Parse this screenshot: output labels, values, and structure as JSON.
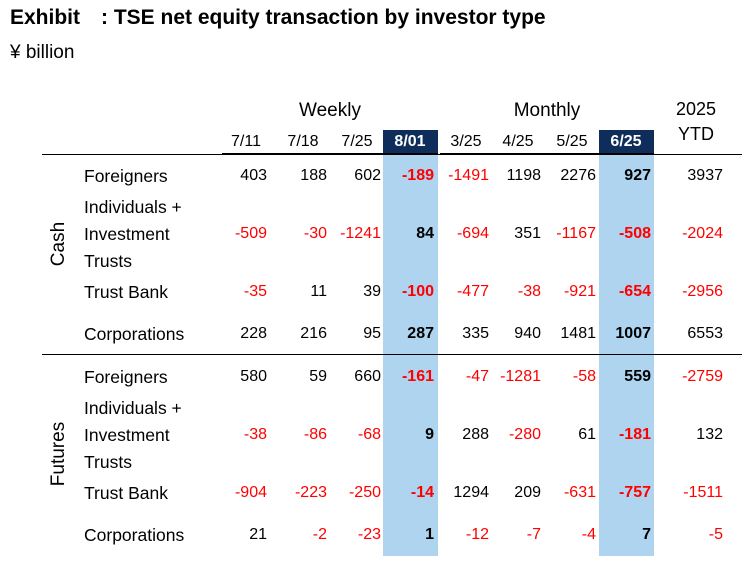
{
  "title": "Exhibit : TSE net equity transaction by investor type",
  "subtitle": "¥ billion",
  "groups": {
    "weekly": "Weekly",
    "monthly": "Monthly",
    "ytd_line1": "2025",
    "ytd_line2": "YTD"
  },
  "columns": [
    "7/11",
    "7/18",
    "7/25",
    "8/01",
    "3/25",
    "4/25",
    "5/25",
    "6/25"
  ],
  "highlighted_columns": [
    "8/01",
    "6/25"
  ],
  "colors": {
    "highlight": "#aed4ef",
    "header_highlight": "#0f2d5a",
    "negative": "#ff0000",
    "positive": "#000000"
  },
  "sections": [
    {
      "name": "Cash",
      "rows": [
        {
          "label": [
            "Foreigners"
          ],
          "values": [
            403,
            188,
            602,
            -189,
            -1491,
            1198,
            2276,
            927,
            3937
          ]
        },
        {
          "label": [
            "Individuals +",
            "Investment",
            "Trusts"
          ],
          "values": [
            -509,
            -30,
            -1241,
            84,
            -694,
            351,
            -1167,
            -508,
            -2024
          ]
        },
        {
          "label": [
            "Trust Bank"
          ],
          "values": [
            -35,
            11,
            39,
            -100,
            -477,
            -38,
            -921,
            -654,
            -2956
          ]
        },
        {
          "label": [
            "Corporations"
          ],
          "values": [
            228,
            216,
            95,
            287,
            335,
            940,
            1481,
            1007,
            6553
          ]
        }
      ]
    },
    {
      "name": "Futures",
      "rows": [
        {
          "label": [
            "Foreigners"
          ],
          "values": [
            580,
            59,
            660,
            -161,
            -47,
            -1281,
            -58,
            559,
            -2759
          ]
        },
        {
          "label": [
            "Individuals +",
            "Investment",
            "Trusts"
          ],
          "values": [
            -38,
            -86,
            -68,
            9,
            288,
            -280,
            61,
            -181,
            132
          ]
        },
        {
          "label": [
            "Trust Bank"
          ],
          "values": [
            -904,
            -223,
            -250,
            -14,
            1294,
            209,
            -631,
            -757,
            -1511
          ]
        },
        {
          "label": [
            "Corporations"
          ],
          "values": [
            21,
            -2,
            -23,
            1,
            -12,
            -7,
            -4,
            7,
            -5
          ]
        }
      ]
    }
  ]
}
